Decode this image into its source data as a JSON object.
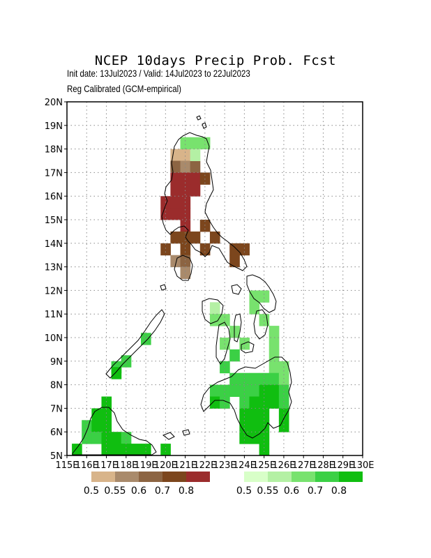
{
  "header": {
    "title": "NCEP 10days Precip Prob. Fcst",
    "subtitle_dates": "Init date: 13Jul2023 / Valid: 14Jul2023 to 22Jul2023",
    "subtitle_method": "Reg Calibrated (GCM-empirical)"
  },
  "axes": {
    "y_ticks": [
      "5N",
      "6N",
      "7N",
      "8N",
      "9N",
      "10N",
      "11N",
      "12N",
      "13N",
      "14N",
      "15N",
      "16N",
      "17N",
      "18N",
      "19N",
      "20N"
    ],
    "x_ticks": [
      "115E",
      "116E",
      "117E",
      "118E",
      "119E",
      "120E",
      "121E",
      "122E",
      "123E",
      "124E",
      "125E",
      "126E",
      "127E",
      "128E",
      "129E",
      "130E"
    ],
    "lat_range": [
      5,
      20
    ],
    "lon_range": [
      115,
      130
    ],
    "grid": true
  },
  "legend_dry": {
    "colors": [
      "#d8b48a",
      "#a98a6b",
      "#8c6442",
      "#7c461d",
      "#9b2c2c"
    ],
    "labels": [
      "0.5",
      "0.55",
      "0.6",
      "0.7",
      "0.8"
    ]
  },
  "legend_wet": {
    "colors": [
      "#d8ffc8",
      "#b4f0a4",
      "#78e26e",
      "#3bd045",
      "#10be10"
    ],
    "labels": [
      "0.5",
      "0.55",
      "0.6",
      "0.7",
      "0.8"
    ]
  },
  "chart_data": {
    "type": "heatmap",
    "description_units": "probability class per 0.5deg cell",
    "dry_cells": [
      {
        "lon": 120.5,
        "lat": 17.75,
        "c": 0
      },
      {
        "lon": 121.0,
        "lat": 17.75,
        "c": 0
      },
      {
        "lon": 120.5,
        "lat": 17.25,
        "c": 2
      },
      {
        "lon": 121.0,
        "lat": 17.25,
        "c": 1
      },
      {
        "lon": 121.5,
        "lat": 17.25,
        "c": 2
      },
      {
        "lon": 120.5,
        "lat": 16.75,
        "c": 4
      },
      {
        "lon": 121.0,
        "lat": 16.75,
        "c": 4
      },
      {
        "lon": 121.5,
        "lat": 16.75,
        "c": 4
      },
      {
        "lon": 122.0,
        "lat": 16.75,
        "c": 3
      },
      {
        "lon": 120.5,
        "lat": 16.25,
        "c": 4
      },
      {
        "lon": 121.0,
        "lat": 16.25,
        "c": 4
      },
      {
        "lon": 121.5,
        "lat": 16.25,
        "c": 4
      },
      {
        "lon": 120.0,
        "lat": 15.75,
        "c": 4
      },
      {
        "lon": 120.5,
        "lat": 15.75,
        "c": 4
      },
      {
        "lon": 121.0,
        "lat": 15.75,
        "c": 4
      },
      {
        "lon": 120.0,
        "lat": 15.25,
        "c": 4
      },
      {
        "lon": 120.5,
        "lat": 15.25,
        "c": 4
      },
      {
        "lon": 121.0,
        "lat": 15.25,
        "c": 4
      },
      {
        "lon": 121.0,
        "lat": 14.75,
        "c": 4
      },
      {
        "lon": 122.0,
        "lat": 14.75,
        "c": 3
      },
      {
        "lon": 120.5,
        "lat": 14.25,
        "c": 3
      },
      {
        "lon": 121.0,
        "lat": 14.25,
        "c": 3
      },
      {
        "lon": 121.5,
        "lat": 14.25,
        "c": 3
      },
      {
        "lon": 122.5,
        "lat": 14.25,
        "c": 3
      },
      {
        "lon": 120.0,
        "lat": 13.75,
        "c": 3
      },
      {
        "lon": 121.0,
        "lat": 13.75,
        "c": 3
      },
      {
        "lon": 122.0,
        "lat": 13.75,
        "c": 3
      },
      {
        "lon": 123.5,
        "lat": 13.75,
        "c": 3
      },
      {
        "lon": 124.0,
        "lat": 13.75,
        "c": 3
      },
      {
        "lon": 120.5,
        "lat": 13.25,
        "c": 1
      },
      {
        "lon": 121.0,
        "lat": 13.25,
        "c": 2
      },
      {
        "lon": 123.5,
        "lat": 13.25,
        "c": 3
      },
      {
        "lon": 121.0,
        "lat": 12.75,
        "c": 1
      }
    ],
    "wet_cells": [
      {
        "lon": 121.0,
        "lat": 18.25,
        "c": 2
      },
      {
        "lon": 121.5,
        "lat": 18.25,
        "c": 2
      },
      {
        "lon": 122.0,
        "lat": 18.25,
        "c": 2
      },
      {
        "lon": 121.5,
        "lat": 17.75,
        "c": 1
      },
      {
        "lon": 124.5,
        "lat": 11.75,
        "c": 2
      },
      {
        "lon": 125.0,
        "lat": 11.75,
        "c": 2
      },
      {
        "lon": 122.5,
        "lat": 11.25,
        "c": 1
      },
      {
        "lon": 124.5,
        "lat": 11.25,
        "c": 2
      },
      {
        "lon": 122.5,
        "lat": 10.75,
        "c": 2
      },
      {
        "lon": 123.0,
        "lat": 10.75,
        "c": 2
      },
      {
        "lon": 125.0,
        "lat": 10.75,
        "c": 2
      },
      {
        "lon": 123.5,
        "lat": 10.25,
        "c": 2
      },
      {
        "lon": 125.5,
        "lat": 10.25,
        "c": 2
      },
      {
        "lon": 123.0,
        "lat": 9.75,
        "c": 2
      },
      {
        "lon": 124.0,
        "lat": 9.75,
        "c": 2
      },
      {
        "lon": 125.5,
        "lat": 9.75,
        "c": 2
      },
      {
        "lon": 123.5,
        "lat": 9.25,
        "c": 3
      },
      {
        "lon": 125.5,
        "lat": 9.25,
        "c": 2
      },
      {
        "lon": 123.0,
        "lat": 8.75,
        "c": 3
      },
      {
        "lon": 125.5,
        "lat": 8.75,
        "c": 2
      },
      {
        "lon": 126.0,
        "lat": 8.75,
        "c": 2
      },
      {
        "lon": 123.5,
        "lat": 8.25,
        "c": 3
      },
      {
        "lon": 124.0,
        "lat": 8.25,
        "c": 3
      },
      {
        "lon": 124.5,
        "lat": 8.25,
        "c": 3
      },
      {
        "lon": 125.0,
        "lat": 8.25,
        "c": 3
      },
      {
        "lon": 125.5,
        "lat": 8.25,
        "c": 3
      },
      {
        "lon": 126.0,
        "lat": 8.25,
        "c": 2
      },
      {
        "lon": 122.5,
        "lat": 7.75,
        "c": 3
      },
      {
        "lon": 123.0,
        "lat": 7.75,
        "c": 3
      },
      {
        "lon": 123.5,
        "lat": 7.75,
        "c": 3
      },
      {
        "lon": 124.0,
        "lat": 7.75,
        "c": 3
      },
      {
        "lon": 124.5,
        "lat": 7.75,
        "c": 3
      },
      {
        "lon": 125.0,
        "lat": 7.75,
        "c": 4
      },
      {
        "lon": 125.5,
        "lat": 7.75,
        "c": 4
      },
      {
        "lon": 126.0,
        "lat": 7.75,
        "c": 3
      },
      {
        "lon": 122.5,
        "lat": 7.25,
        "c": 4
      },
      {
        "lon": 123.0,
        "lat": 7.25,
        "c": 3
      },
      {
        "lon": 124.0,
        "lat": 7.25,
        "c": 3
      },
      {
        "lon": 124.5,
        "lat": 7.25,
        "c": 4
      },
      {
        "lon": 125.0,
        "lat": 7.25,
        "c": 4
      },
      {
        "lon": 125.5,
        "lat": 7.25,
        "c": 4
      },
      {
        "lon": 126.0,
        "lat": 7.25,
        "c": 3
      },
      {
        "lon": 124.0,
        "lat": 6.75,
        "c": 4
      },
      {
        "lon": 124.5,
        "lat": 6.75,
        "c": 4
      },
      {
        "lon": 125.0,
        "lat": 6.75,
        "c": 4
      },
      {
        "lon": 126.0,
        "lat": 6.75,
        "c": 4
      },
      {
        "lon": 124.0,
        "lat": 6.25,
        "c": 4
      },
      {
        "lon": 124.5,
        "lat": 6.25,
        "c": 4
      },
      {
        "lon": 125.0,
        "lat": 6.25,
        "c": 4
      },
      {
        "lon": 126.0,
        "lat": 6.25,
        "c": 4
      },
      {
        "lon": 124.0,
        "lat": 5.75,
        "c": 4
      },
      {
        "lon": 124.5,
        "lat": 5.75,
        "c": 4
      },
      {
        "lon": 125.0,
        "lat": 5.75,
        "c": 4
      },
      {
        "lon": 125.0,
        "lat": 5.25,
        "c": 4
      },
      {
        "lon": 117.0,
        "lat": 7.25,
        "c": 4
      },
      {
        "lon": 117.0,
        "lat": 6.75,
        "c": 4
      },
      {
        "lon": 116.5,
        "lat": 6.75,
        "c": 4
      },
      {
        "lon": 116.0,
        "lat": 6.25,
        "c": 3
      },
      {
        "lon": 116.5,
        "lat": 6.25,
        "c": 4
      },
      {
        "lon": 117.0,
        "lat": 6.25,
        "c": 4
      },
      {
        "lon": 116.0,
        "lat": 5.75,
        "c": 3
      },
      {
        "lon": 116.5,
        "lat": 5.75,
        "c": 3
      },
      {
        "lon": 117.0,
        "lat": 5.75,
        "c": 4
      },
      {
        "lon": 117.5,
        "lat": 5.75,
        "c": 4
      },
      {
        "lon": 118.0,
        "lat": 5.75,
        "c": 3
      },
      {
        "lon": 115.5,
        "lat": 5.25,
        "c": 4
      },
      {
        "lon": 117.0,
        "lat": 5.25,
        "c": 4
      },
      {
        "lon": 117.5,
        "lat": 5.25,
        "c": 4
      },
      {
        "lon": 118.0,
        "lat": 5.25,
        "c": 4
      },
      {
        "lon": 118.5,
        "lat": 5.25,
        "c": 4
      },
      {
        "lon": 119.0,
        "lat": 5.25,
        "c": 4
      },
      {
        "lon": 120.0,
        "lat": 5.25,
        "c": 4
      },
      {
        "lon": 118.0,
        "lat": 9.0,
        "c": 3
      },
      {
        "lon": 117.5,
        "lat": 8.75,
        "c": 3
      },
      {
        "lon": 117.5,
        "lat": 8.5,
        "c": 4
      },
      {
        "lon": 119.0,
        "lat": 9.95,
        "c": 3
      }
    ]
  }
}
